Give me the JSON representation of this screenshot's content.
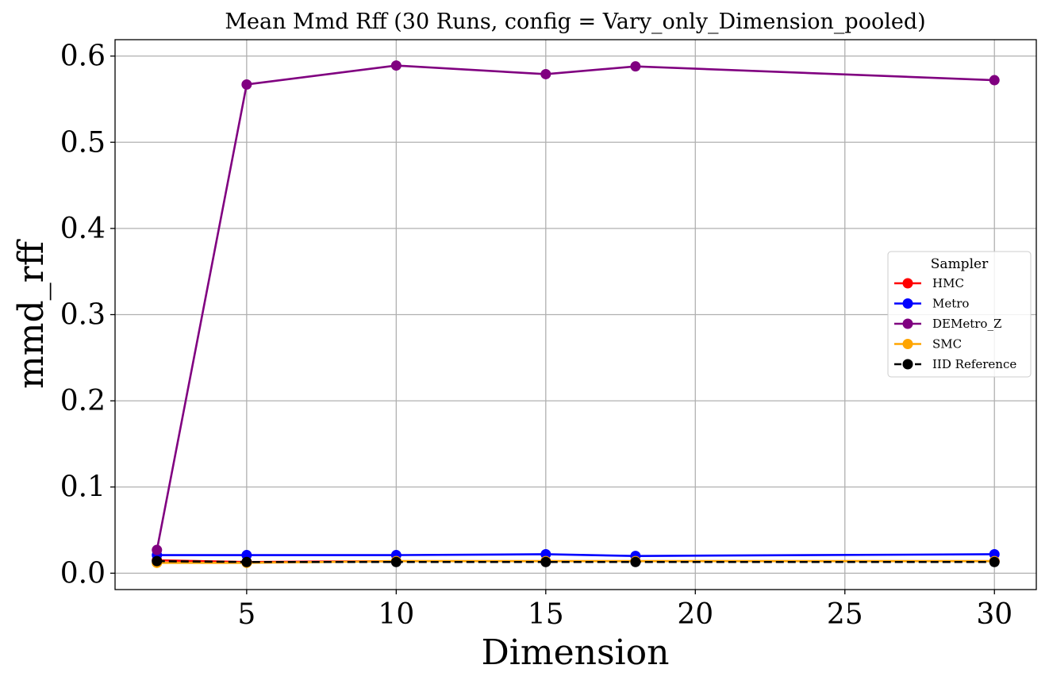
{
  "chart_data": {
    "type": "line",
    "title": "Mean Mmd Rff (30 Runs, config = Vary_only_Dimension_pooled)",
    "xlabel": "Dimension",
    "ylabel": "mmd_rff",
    "x": [
      2,
      5,
      10,
      15,
      18,
      30
    ],
    "xlim": [
      0.6,
      31.4
    ],
    "ylim": [
      -0.019,
      0.619
    ],
    "xticks": [
      5,
      10,
      15,
      20,
      25,
      30
    ],
    "yticks": [
      0.0,
      0.1,
      0.2,
      0.3,
      0.4,
      0.5,
      0.6
    ],
    "xtick_labels": [
      "5",
      "10",
      "15",
      "20",
      "25",
      "30"
    ],
    "ytick_labels": [
      "0.0",
      "0.1",
      "0.2",
      "0.3",
      "0.4",
      "0.5",
      "0.6"
    ],
    "grid": true,
    "legend_title": "Sampler",
    "legend_position": "center-right",
    "series": [
      {
        "name": "HMC",
        "color": "#ff0000",
        "dashed": false,
        "values": [
          0.015,
          0.013,
          0.014,
          0.014,
          0.014,
          0.014
        ]
      },
      {
        "name": "Metro",
        "color": "#0000ff",
        "dashed": false,
        "values": [
          0.021,
          0.021,
          0.021,
          0.022,
          0.02,
          0.022
        ]
      },
      {
        "name": "DEMetro_Z",
        "color": "#800080",
        "dashed": false,
        "values": [
          0.027,
          0.567,
          0.589,
          0.579,
          0.588,
          0.572
        ]
      },
      {
        "name": "SMC",
        "color": "#ffa500",
        "dashed": false,
        "values": [
          0.012,
          0.012,
          0.014,
          0.014,
          0.014,
          0.014
        ]
      },
      {
        "name": "IID Reference",
        "color": "#000000",
        "dashed": true,
        "values": [
          0.014,
          0.013,
          0.013,
          0.013,
          0.013,
          0.013
        ]
      }
    ]
  }
}
